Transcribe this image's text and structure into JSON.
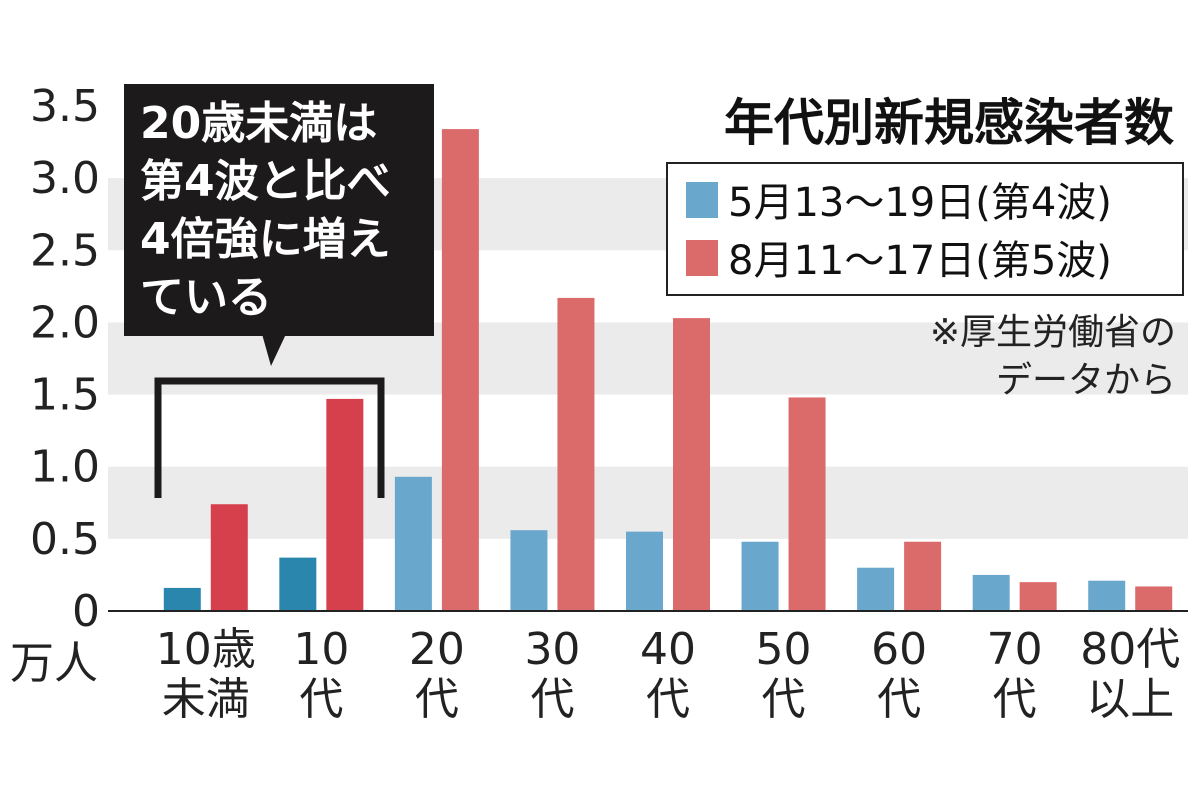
{
  "chart_data": {
    "type": "bar",
    "title": "年代別新規感染者数",
    "unit_label": "万人",
    "categories": [
      [
        "10歳",
        "未満"
      ],
      [
        "10",
        "代"
      ],
      [
        "20",
        "代"
      ],
      [
        "30",
        "代"
      ],
      [
        "40",
        "代"
      ],
      [
        "50",
        "代"
      ],
      [
        "60",
        "代"
      ],
      [
        "70",
        "代"
      ],
      [
        "80代",
        "以上"
      ]
    ],
    "series": [
      {
        "name": "5月13〜19日(第4波)",
        "color": "#6aa7cc",
        "highlight_color": "#2b86ad",
        "values": [
          0.16,
          0.37,
          0.93,
          0.56,
          0.55,
          0.48,
          0.3,
          0.25,
          0.21
        ]
      },
      {
        "name": "8月11〜17日(第5波)",
        "color": "#db6b6b",
        "highlight_color": "#d6404d",
        "values": [
          0.74,
          1.47,
          3.34,
          2.17,
          2.03,
          1.48,
          0.48,
          0.2,
          0.17
        ]
      }
    ],
    "highlight_categories": [
      0,
      1
    ],
    "yticks": [
      "0",
      "0.5",
      "1.0",
      "1.5",
      "2.0",
      "2.5",
      "3.0",
      "3.5"
    ],
    "ylim": [
      0,
      3.5
    ],
    "legend_position": "top-right",
    "note_lines": [
      "※厚生労働省の",
      "データから"
    ],
    "callout_lines": [
      "20歳未満は",
      "第4波と比べ",
      "4倍強に増え",
      "ている"
    ]
  }
}
